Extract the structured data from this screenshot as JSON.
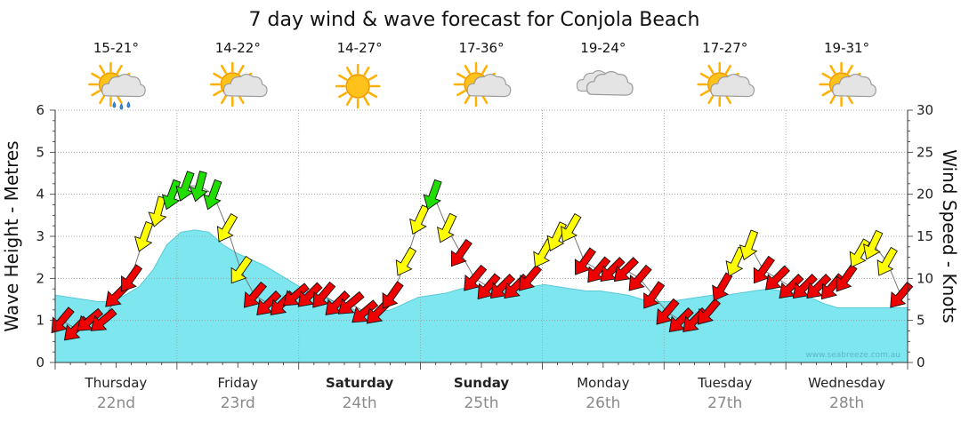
{
  "chart_data": {
    "type": "area",
    "title": "7 day wind & wave forecast for Conjola Beach",
    "ylabel_left": "Wave Height - Metres",
    "ylabel_right": "Wind Speed - Knots",
    "ylim_left": [
      0,
      6
    ],
    "ylim_right": [
      0,
      30
    ],
    "left_ticks": [
      "0",
      "1",
      "2",
      "3",
      "4",
      "5",
      "6"
    ],
    "right_ticks": [
      "0",
      "5",
      "10",
      "15",
      "20",
      "25",
      "30"
    ],
    "watermark": "www.seabreeze.com.au",
    "days": [
      {
        "name": "Thursday",
        "date": "22nd",
        "temp": "15-21°",
        "weather": "sun-rain",
        "bold": false
      },
      {
        "name": "Friday",
        "date": "23rd",
        "temp": "14-22°",
        "weather": "sun-cloud",
        "bold": false
      },
      {
        "name": "Saturday",
        "date": "24th",
        "temp": "14-27°",
        "weather": "sun",
        "bold": true
      },
      {
        "name": "Sunday",
        "date": "25th",
        "temp": "17-36°",
        "weather": "sun-cloud",
        "bold": true
      },
      {
        "name": "Monday",
        "date": "26th",
        "temp": "19-24°",
        "weather": "cloud",
        "bold": false
      },
      {
        "name": "Tuesday",
        "date": "27th",
        "temp": "17-27°",
        "weather": "sun-cloud",
        "bold": false
      },
      {
        "name": "Wednesday",
        "date": "28th",
        "temp": "19-31°",
        "weather": "sun-cloud",
        "bold": false
      }
    ],
    "wave_height_m": [
      1.6,
      1.55,
      1.5,
      1.45,
      1.45,
      1.6,
      1.8,
      2.2,
      2.8,
      3.1,
      3.15,
      3.1,
      2.8,
      2.6,
      2.45,
      2.3,
      2.1,
      1.9,
      1.7,
      1.6,
      1.45,
      1.3,
      1.2,
      1.2,
      1.25,
      1.4,
      1.55,
      1.6,
      1.65,
      1.75,
      1.8,
      1.75,
      1.7,
      1.7,
      1.8,
      1.85,
      1.8,
      1.75,
      1.7,
      1.7,
      1.65,
      1.6,
      1.5,
      1.45,
      1.45,
      1.5,
      1.55,
      1.6,
      1.6,
      1.65,
      1.7,
      1.75,
      1.7,
      1.65,
      1.55,
      1.4,
      1.3,
      1.3,
      1.3,
      1.3,
      1.3,
      1.3
    ],
    "wind_knots": [
      5,
      4,
      5,
      5,
      8,
      10,
      15,
      18,
      20,
      21,
      21,
      20,
      16,
      11,
      8,
      7,
      7,
      8,
      8,
      8,
      7,
      7,
      6,
      6,
      8,
      12,
      17,
      20,
      16,
      13,
      10,
      9,
      9,
      9,
      10,
      13,
      15,
      16,
      12,
      11,
      11,
      11,
      10,
      8,
      6,
      5,
      5,
      6,
      9,
      12,
      14,
      11,
      10,
      9,
      9,
      9,
      9,
      10,
      13,
      14,
      12,
      8
    ],
    "wind_color": [
      "red",
      "red",
      "red",
      "red",
      "red",
      "red",
      "yellow",
      "yellow",
      "green",
      "green",
      "green",
      "green",
      "yellow",
      "yellow",
      "red",
      "red",
      "red",
      "red",
      "red",
      "red",
      "red",
      "red",
      "red",
      "red",
      "red",
      "yellow",
      "yellow",
      "green",
      "yellow",
      "red",
      "red",
      "red",
      "red",
      "red",
      "red",
      "yellow",
      "yellow",
      "yellow",
      "red",
      "red",
      "red",
      "red",
      "red",
      "red",
      "red",
      "red",
      "red",
      "red",
      "red",
      "yellow",
      "yellow",
      "red",
      "red",
      "red",
      "red",
      "red",
      "red",
      "red",
      "yellow",
      "yellow",
      "yellow",
      "red"
    ],
    "wind_dir_deg": [
      220,
      225,
      230,
      230,
      225,
      215,
      200,
      195,
      200,
      200,
      195,
      200,
      210,
      215,
      220,
      225,
      225,
      230,
      225,
      220,
      225,
      230,
      230,
      225,
      215,
      210,
      205,
      200,
      205,
      215,
      220,
      220,
      225,
      225,
      220,
      210,
      205,
      210,
      215,
      220,
      225,
      225,
      220,
      215,
      220,
      225,
      225,
      220,
      210,
      205,
      200,
      215,
      225,
      225,
      225,
      225,
      220,
      215,
      210,
      205,
      210,
      220
    ]
  }
}
